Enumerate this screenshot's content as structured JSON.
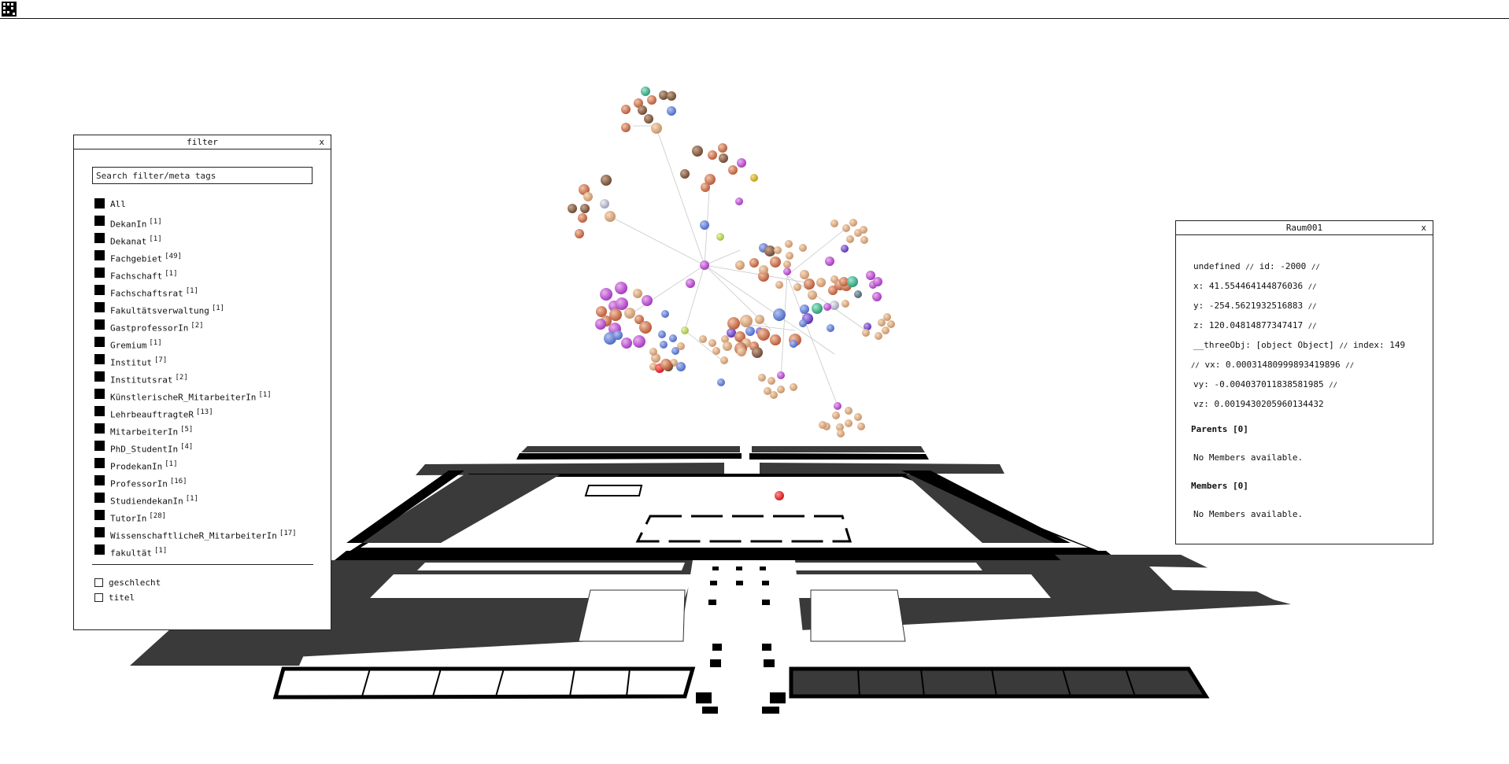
{
  "app": {
    "icon": "grid-app-icon"
  },
  "filter": {
    "title": "filter",
    "close": "x",
    "search_placeholder": "Search filter/meta tags",
    "tags": [
      {
        "label": "All",
        "count": ""
      },
      {
        "label": "DekanIn",
        "count": "[1]"
      },
      {
        "label": "Dekanat",
        "count": "[1]"
      },
      {
        "label": "Fachgebiet",
        "count": "[49]"
      },
      {
        "label": "Fachschaft",
        "count": "[1]"
      },
      {
        "label": "Fachschaftsrat",
        "count": "[1]"
      },
      {
        "label": "Fakultätsverwaltung",
        "count": "[1]"
      },
      {
        "label": "GastprofessorIn",
        "count": "[2]"
      },
      {
        "label": "Gremium",
        "count": "[1]"
      },
      {
        "label": "Institut",
        "count": "[7]"
      },
      {
        "label": "Institutsrat",
        "count": "[2]"
      },
      {
        "label": "KünstlerischeR_MitarbeiterIn",
        "count": "[1]"
      },
      {
        "label": "LehrbeauftragteR",
        "count": "[13]"
      },
      {
        "label": "MitarbeiterIn",
        "count": "[5]"
      },
      {
        "label": "PhD_StudentIn",
        "count": "[4]"
      },
      {
        "label": "ProdekanIn",
        "count": "[1]"
      },
      {
        "label": "ProfessorIn",
        "count": "[16]"
      },
      {
        "label": "StudiendekanIn",
        "count": "[1]"
      },
      {
        "label": "TutorIn",
        "count": "[28]"
      },
      {
        "label": "WissenschaftlicheR_MitarbeiterIn",
        "count": "[17]"
      },
      {
        "label": "fakultät",
        "count": "[1]"
      }
    ],
    "meta": [
      {
        "label": "geschlecht"
      },
      {
        "label": "titel"
      }
    ]
  },
  "detail": {
    "title": "Raum001",
    "close": "x",
    "lines": [
      {
        "text": "undefined",
        "sep": "//",
        "tail": "id: -2000",
        "sep2": "//"
      },
      {
        "text": "x: 41.554464144876036",
        "sep": "//",
        "tail": "",
        "sep2": ""
      },
      {
        "text": "y: -254.5621932516883",
        "sep": "//",
        "tail": "",
        "sep2": ""
      },
      {
        "text": "z: 120.04814877347417",
        "sep": "//",
        "tail": "",
        "sep2": ""
      },
      {
        "text": "__threeObj: [object Object]",
        "sep": "//",
        "tail": "index: 149",
        "sep2": ""
      },
      {
        "text": "",
        "sep": "//",
        "tail": "vx: 0.00031480999893419896",
        "sep2": "//"
      },
      {
        "text": "vy: -0.004037011838581985",
        "sep": "//",
        "tail": "",
        "sep2": ""
      },
      {
        "text": "vz: 0.0019430205960134432",
        "sep": "",
        "tail": "",
        "sep2": ""
      }
    ],
    "parents_heading": "Parents [0]",
    "parents_empty": "No Members available.",
    "members_heading": "Members [0]",
    "members_empty": "No Members available."
  },
  "colors": {
    "floor_dark": "#3a3a3a",
    "wall": "#000000",
    "edge": "#c8c8c8",
    "highlight_node": "#e03030"
  }
}
